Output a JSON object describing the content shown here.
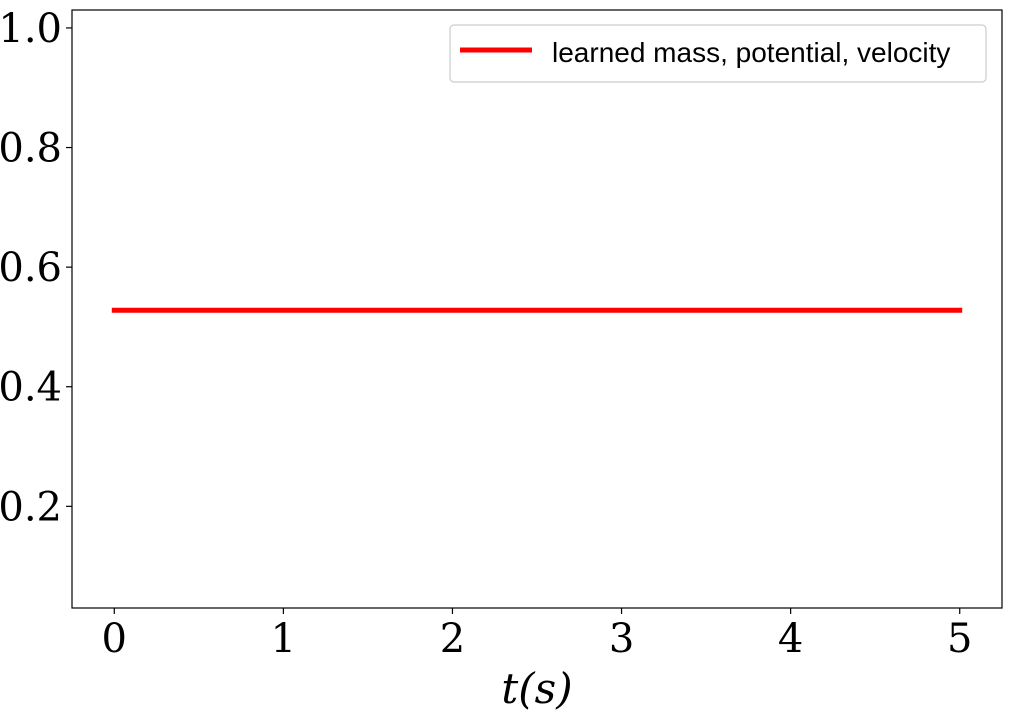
{
  "chart_data": {
    "type": "line",
    "title": "",
    "xlabel": "t(s)",
    "ylabel": "",
    "xlim": [
      -0.25,
      5.25
    ],
    "ylim": [
      0.03,
      1.03
    ],
    "xticks": [
      0,
      1,
      2,
      3,
      4,
      5
    ],
    "xtick_labels": [
      "0",
      "1",
      "2",
      "3",
      "4",
      "5"
    ],
    "yticks": [
      0.2,
      0.4,
      0.6,
      0.8,
      1.0
    ],
    "ytick_labels": [
      "0.2",
      "0.4",
      "0.6",
      "0.8",
      "1.0"
    ],
    "grid": false,
    "legend_position": "top-right",
    "series": [
      {
        "name": "learned mass, potential, velocity",
        "color": "#ff0000",
        "x": [
          0,
          5
        ],
        "y": [
          0.528,
          0.528
        ]
      }
    ]
  }
}
